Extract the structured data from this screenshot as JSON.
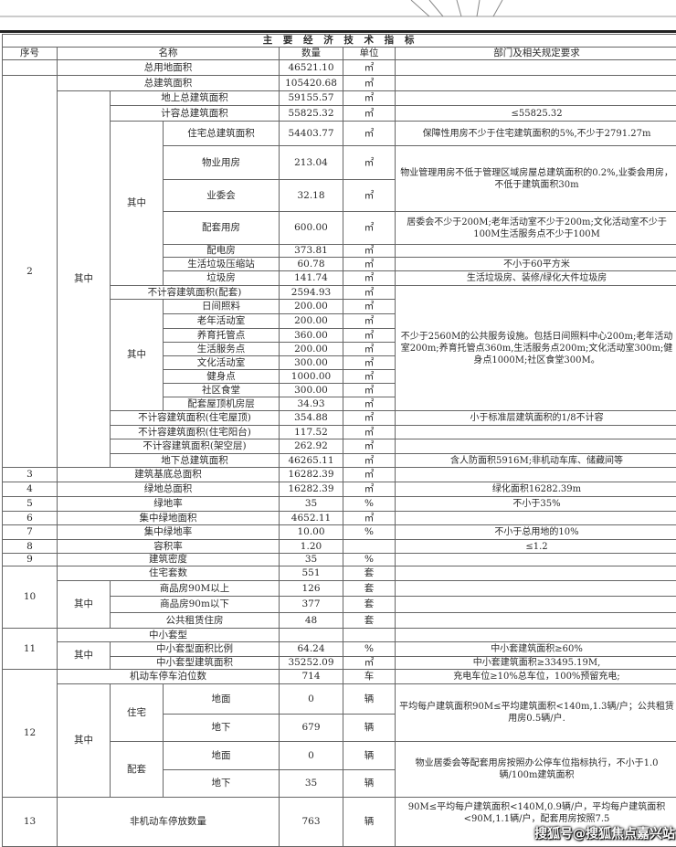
{
  "title": "主 要 经 济 技 术 指 标",
  "headers": {
    "no": "序号",
    "name": "名称",
    "qty": "数量",
    "unit": "单位",
    "req": "部门及相关规定要求"
  },
  "labels": {
    "qizhong": "其中",
    "zhuzhai": "住宅",
    "peitao": "配套"
  },
  "rows": [
    {
      "no": "",
      "name": "总用地面积",
      "qty": "46521.10",
      "unit": "㎡",
      "req": ""
    },
    {
      "no": "2",
      "name": "总建筑面积",
      "qty": "105420.68",
      "unit": "㎡",
      "req": ""
    },
    {
      "name": "地上总建筑面积",
      "qty": "59155.57",
      "unit": "㎡",
      "req": ""
    },
    {
      "name": "计容总建筑面积",
      "qty": "55825.32",
      "unit": "㎡",
      "req": "≤55825.32"
    },
    {
      "name": "住宅总建筑面积",
      "qty": "54403.77",
      "unit": "㎡",
      "req": "保障性用房不少于住宅建筑面积的5%,不少于2791.27m"
    },
    {
      "name": "物业用房",
      "qty": "213.04",
      "unit": "㎡",
      "req": "物业管理用房不低于管理区域房屋总建筑面积的0.2%,业委会用房，不低于建筑面积30m"
    },
    {
      "name": "业委会",
      "qty": "32.18",
      "unit": "㎡"
    },
    {
      "name": "配套用房",
      "qty": "600.00",
      "unit": "㎡",
      "req": "居委会不少于200M;老年活动室不少于200m;文化活动室不少于100M生活服务点不少于100M"
    },
    {
      "name": "配电房",
      "qty": "373.81",
      "unit": "㎡",
      "req": ""
    },
    {
      "name": "生活垃圾压缩站",
      "qty": "60.78",
      "unit": "㎡",
      "req": "不小于60平方米"
    },
    {
      "name": "垃圾房",
      "qty": "141.74",
      "unit": "㎡",
      "req": "生活垃圾房、装修/绿化大件垃圾房"
    },
    {
      "name": "不计容建筑面积(配套)",
      "qty": "2594.93",
      "unit": "㎡",
      "req": "不少于2560M的公共服务设施。包括日间照料中心200m;老年活动室200m;养育托管点360m,生活服务点200m;文化活动室300m;健身点1000M;社区食堂300M。"
    },
    {
      "name": "日间照料",
      "qty": "200.00",
      "unit": "㎡"
    },
    {
      "name": "老年活动室",
      "qty": "200.00",
      "unit": "㎡"
    },
    {
      "name": "养育托管点",
      "qty": "360.00",
      "unit": "㎡"
    },
    {
      "name": "生活服务点",
      "qty": "200.00",
      "unit": "㎡"
    },
    {
      "name": "文化活动室",
      "qty": "300.00",
      "unit": "㎡"
    },
    {
      "name": "健身点",
      "qty": "1000.00",
      "unit": "㎡"
    },
    {
      "name": "社区食堂",
      "qty": "300.00",
      "unit": "㎡"
    },
    {
      "name": "配套屋顶机房层",
      "qty": "34.93",
      "unit": "㎡",
      "req": ""
    },
    {
      "name": "不计容建筑面积(住宅屋顶)",
      "qty": "354.88",
      "unit": "㎡",
      "req": "小于标准层建筑面积的1/8不计容"
    },
    {
      "name": "不计容建筑面积(住宅阳台)",
      "qty": "117.52",
      "unit": "㎡",
      "req": ""
    },
    {
      "name": "不计容建筑面积(架空层)",
      "qty": "262.92",
      "unit": "㎡",
      "req": ""
    },
    {
      "name": "地下总建筑面积",
      "qty": "46265.11",
      "unit": "㎡",
      "req": "含人防面积5916M;非机动车库、储藏间等"
    },
    {
      "no": "3",
      "name": "建筑基底总面积",
      "qty": "16282.39",
      "unit": "㎡",
      "req": ""
    },
    {
      "no": "4",
      "name": "绿地总面积",
      "qty": "16282.39",
      "unit": "㎡",
      "req": "绿化面积16282.39m"
    },
    {
      "no": "5",
      "name": "绿地率",
      "qty": "35",
      "unit": "%",
      "req": "不小于35%"
    },
    {
      "no": "6",
      "name": "集中绿地面积",
      "qty": "4652.11",
      "unit": "㎡",
      "req": ""
    },
    {
      "no": "7",
      "name": "集中绿地率",
      "qty": "10.00",
      "unit": "%",
      "req": "不小于总用地的10%"
    },
    {
      "no": "8",
      "name": "容积率",
      "qty": "1.20",
      "unit": "",
      "req": "≤1.2"
    },
    {
      "no": "9",
      "name": "建筑密度",
      "qty": "35",
      "unit": "%",
      "req": ""
    },
    {
      "no": "10",
      "name": "住宅套数",
      "qty": "551",
      "unit": "套",
      "req": ""
    },
    {
      "name": "商品房90M以上",
      "qty": "126",
      "unit": "套",
      "req": ""
    },
    {
      "name": "商品房90m以下",
      "qty": "377",
      "unit": "套",
      "req": ""
    },
    {
      "name": "公共租赁住房",
      "qty": "48",
      "unit": "套",
      "req": ""
    },
    {
      "no": "11",
      "name": "中小套型",
      "qty": "",
      "unit": "",
      "req": ""
    },
    {
      "name": "中小套型面积比例",
      "qty": "64.24",
      "unit": "%",
      "req": "中小套建筑面积≥60%"
    },
    {
      "name": "中小套型建筑面积",
      "qty": "35252.09",
      "unit": "㎡",
      "req": "中小套建筑面积≥33495.19M,"
    },
    {
      "no": "12",
      "name": "机动车停车泊位数",
      "qty": "714",
      "unit": "车",
      "req": "充电车位≥10%总车位，100%预留充电;"
    },
    {
      "name": "地面",
      "qty": "0",
      "unit": "辆",
      "req": "平均每户建筑面积90M≤平均建筑面积<140m,1.3辆/户；公共租赁用房0.5辆/户."
    },
    {
      "name": "地下",
      "qty": "679",
      "unit": "辆"
    },
    {
      "name": "地面",
      "qty": "0",
      "unit": "辆",
      "req": "物业居委会等配套用房按照办公停车位指标执行，不小于1.0辆/100m建筑面积"
    },
    {
      "name": "地下",
      "qty": "35",
      "unit": "辆"
    },
    {
      "no": "13",
      "name": "非机动车停放数量",
      "qty": "763",
      "unit": "辆",
      "req": "90M≤平均每户建筑面积<140M,0.9辆/户，平均每户建筑面积<90M,1.1辆/户，配套用房按照7.5"
    }
  ],
  "watermark": "搜狐号@搜狐焦点嘉兴站"
}
